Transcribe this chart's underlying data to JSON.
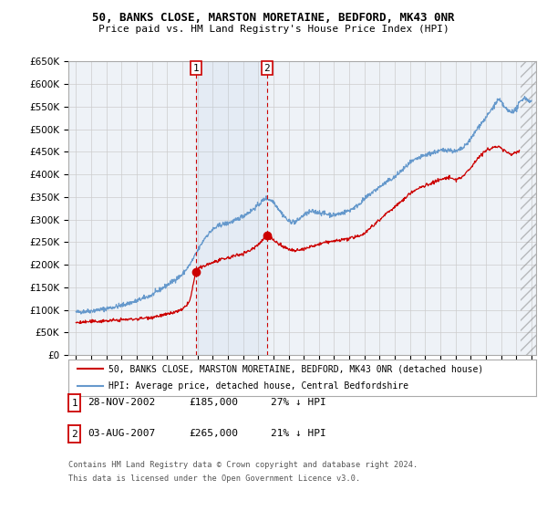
{
  "title1": "50, BANKS CLOSE, MARSTON MORETAINE, BEDFORD, MK43 0NR",
  "title2": "Price paid vs. HM Land Registry's House Price Index (HPI)",
  "ylim": [
    0,
    650000
  ],
  "yticks": [
    0,
    50000,
    100000,
    150000,
    200000,
    250000,
    300000,
    350000,
    400000,
    450000,
    500000,
    550000,
    600000,
    650000
  ],
  "sale1_x": 2002.91,
  "sale1_y": 185000,
  "sale2_x": 2007.58,
  "sale2_y": 265000,
  "legend_line1": "50, BANKS CLOSE, MARSTON MORETAINE, BEDFORD, MK43 0NR (detached house)",
  "legend_line2": "HPI: Average price, detached house, Central Bedfordshire",
  "table_row1": [
    "1",
    "28-NOV-2002",
    "£185,000",
    "27% ↓ HPI"
  ],
  "table_row2": [
    "2",
    "03-AUG-2007",
    "£265,000",
    "21% ↓ HPI"
  ],
  "footnote1": "Contains HM Land Registry data © Crown copyright and database right 2024.",
  "footnote2": "This data is licensed under the Open Government Licence v3.0.",
  "red_color": "#cc0000",
  "blue_color": "#6699cc",
  "bg_color": "#ffffff",
  "grid_color": "#cccccc",
  "plot_bg": "#eef2f7",
  "hatch_start": 2024.25,
  "xlim_left": 1994.5,
  "xlim_right": 2025.3
}
